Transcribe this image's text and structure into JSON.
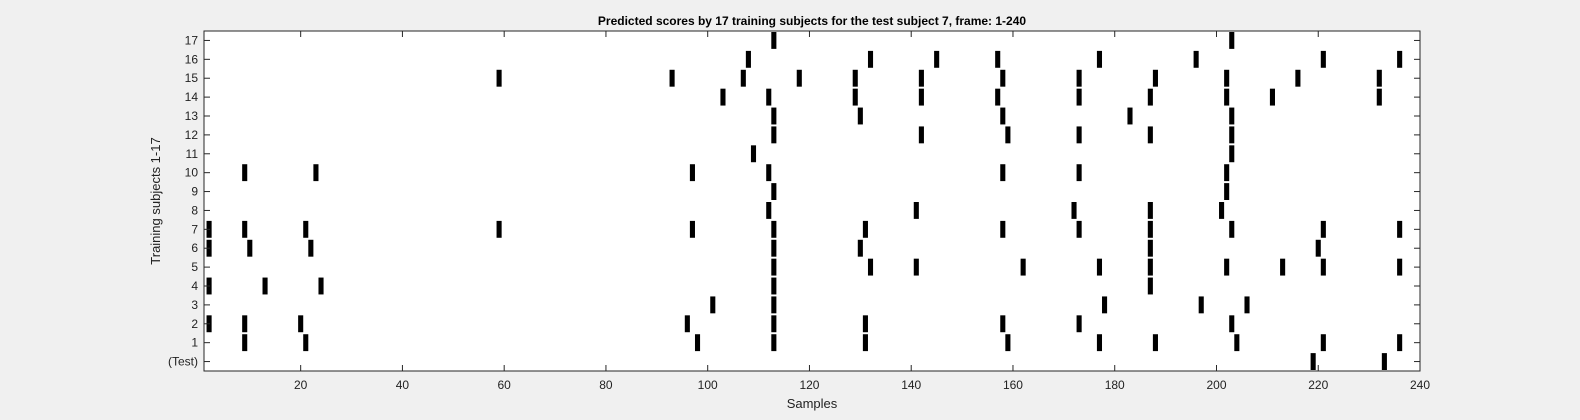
{
  "chart_data": {
    "type": "heatmap",
    "title": "Predicted scores by 17 training subjects for the test subject 7, frame: 1-240",
    "xlabel": "Samples",
    "ylabel": "Training subjects 1-17",
    "xlim": [
      1,
      240
    ],
    "xticks": [
      20,
      40,
      60,
      80,
      100,
      120,
      140,
      160,
      180,
      200,
      220,
      240
    ],
    "row_labels": [
      "(Test)",
      "1",
      "2",
      "3",
      "4",
      "5",
      "6",
      "7",
      "8",
      "9",
      "10",
      "11",
      "12",
      "13",
      "14",
      "15",
      "16",
      "17"
    ],
    "colors": {
      "mark": "#000000",
      "background": "#ffffff"
    },
    "rows": [
      {
        "label": "(Test)",
        "samples": [
          219,
          233
        ]
      },
      {
        "label": "1",
        "samples": [
          9,
          21,
          98,
          113,
          131,
          159,
          177,
          188,
          204,
          221,
          236
        ]
      },
      {
        "label": "2",
        "samples": [
          2,
          9,
          20,
          96,
          113,
          131,
          158,
          173,
          203
        ]
      },
      {
        "label": "3",
        "samples": [
          101,
          113,
          178,
          197,
          206
        ]
      },
      {
        "label": "4",
        "samples": [
          2,
          13,
          24,
          113,
          187
        ]
      },
      {
        "label": "5",
        "samples": [
          113,
          132,
          141,
          162,
          177,
          187,
          202,
          213,
          221,
          236
        ]
      },
      {
        "label": "6",
        "samples": [
          2,
          10,
          22,
          113,
          130,
          187,
          220
        ]
      },
      {
        "label": "7",
        "samples": [
          2,
          9,
          21,
          59,
          97,
          113,
          131,
          158,
          173,
          187,
          203,
          221,
          236
        ]
      },
      {
        "label": "8",
        "samples": [
          112,
          141,
          172,
          187,
          201
        ]
      },
      {
        "label": "9",
        "samples": [
          113,
          202
        ]
      },
      {
        "label": "10",
        "samples": [
          9,
          23,
          97,
          112,
          158,
          173,
          202
        ]
      },
      {
        "label": "11",
        "samples": [
          109,
          203
        ]
      },
      {
        "label": "12",
        "samples": [
          113,
          142,
          159,
          173,
          187,
          203
        ]
      },
      {
        "label": "13",
        "samples": [
          113,
          130,
          158,
          183,
          203
        ]
      },
      {
        "label": "14",
        "samples": [
          103,
          112,
          129,
          142,
          157,
          173,
          187,
          202,
          211,
          232
        ]
      },
      {
        "label": "15",
        "samples": [
          59,
          93,
          107,
          118,
          129,
          142,
          158,
          173,
          188,
          202,
          216,
          232
        ]
      },
      {
        "label": "16",
        "samples": [
          108,
          132,
          145,
          157,
          177,
          196,
          221,
          236
        ]
      },
      {
        "label": "17",
        "samples": [
          113,
          203
        ]
      }
    ]
  }
}
